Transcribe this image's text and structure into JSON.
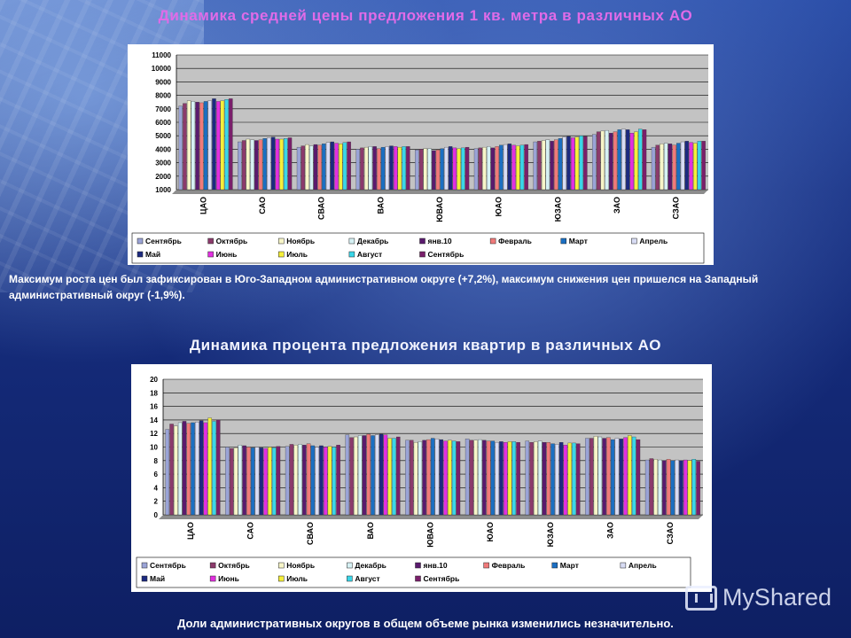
{
  "slide": {
    "note": "Максимум роста цен был зафиксирован в Юго-Западном административном округе (+7,2%), максимум снижения цен пришелся на Западный административный округ (-1,9%).",
    "footer": "Доли административных округов в общем объеме рынка изменились незначительно.",
    "logo_text": "MyShared"
  },
  "chart_data": [
    {
      "type": "bar",
      "title": "Динамика средней цены предложения 1 кв. метра в различных АО",
      "categories": [
        "ЦАО",
        "САО",
        "СВАО",
        "ВАО",
        "ЮВАО",
        "ЮАО",
        "ЮЗАО",
        "ЗАО",
        "СЗАО"
      ],
      "ylim": [
        1000,
        11000
      ],
      "yticks": [
        1000,
        2000,
        3000,
        4000,
        5000,
        6000,
        7000,
        8000,
        9000,
        10000,
        11000
      ],
      "grid": true,
      "legend_position": "bottom",
      "series": [
        {
          "name": "Сентябрь",
          "color": "#9aa3d6",
          "values": [
            7200,
            4550,
            4150,
            4000,
            3950,
            4050,
            4550,
            5100,
            4150
          ]
        },
        {
          "name": "Октябрь",
          "color": "#8b3a6b",
          "values": [
            7400,
            4650,
            4250,
            4100,
            4000,
            4100,
            4600,
            5300,
            4300
          ]
        },
        {
          "name": "Ноябрь",
          "color": "#f7f5c8",
          "values": [
            7600,
            4750,
            4350,
            4150,
            4050,
            4150,
            4650,
            5350,
            4400
          ]
        },
        {
          "name": "Декабрь",
          "color": "#d6f1f4",
          "values": [
            7550,
            4700,
            4250,
            4200,
            4050,
            4200,
            4700,
            5400,
            4450
          ]
        },
        {
          "name": "янв.10",
          "color": "#5a1a6e",
          "values": [
            7500,
            4650,
            4350,
            4200,
            3900,
            4100,
            4600,
            5200,
            4400
          ]
        },
        {
          "name": "Февраль",
          "color": "#f07a7a",
          "values": [
            7450,
            4700,
            4300,
            4050,
            3950,
            4200,
            4700,
            5300,
            4300
          ]
        },
        {
          "name": "Март",
          "color": "#1b6fc2",
          "values": [
            7550,
            4800,
            4400,
            4150,
            4050,
            4300,
            4800,
            5450,
            4450
          ]
        },
        {
          "name": "Апрель",
          "color": "#d8dcf4",
          "values": [
            7600,
            4850,
            4500,
            4200,
            4150,
            4350,
            4900,
            5500,
            4550
          ]
        },
        {
          "name": "Май",
          "color": "#1c2a80",
          "values": [
            7750,
            4900,
            4550,
            4250,
            4200,
            4400,
            4950,
            5450,
            4600
          ]
        },
        {
          "name": "Июнь",
          "color": "#e22fe0",
          "values": [
            7550,
            4750,
            4450,
            4200,
            4100,
            4300,
            4850,
            5200,
            4500
          ]
        },
        {
          "name": "Июль",
          "color": "#f5ef3a",
          "values": [
            7600,
            4750,
            4400,
            4150,
            4050,
            4250,
            4900,
            5300,
            4450
          ]
        },
        {
          "name": "Август",
          "color": "#3ad6e8",
          "values": [
            7700,
            4800,
            4500,
            4200,
            4100,
            4300,
            5000,
            5500,
            4600
          ]
        },
        {
          "name": "Сентябрь",
          "color": "#7a1f6b",
          "values": [
            7750,
            4850,
            4550,
            4200,
            4150,
            4350,
            4950,
            5450,
            4600
          ]
        }
      ]
    },
    {
      "type": "bar",
      "title": "Динамика процента предложения квартир в различных АО",
      "categories": [
        "ЦАО",
        "САО",
        "СВАО",
        "ВАО",
        "ЮВАО",
        "ЮАО",
        "ЮЗАО",
        "ЗАО",
        "СЗАО"
      ],
      "ylim": [
        0,
        20
      ],
      "yticks": [
        0,
        2,
        4,
        6,
        8,
        10,
        12,
        14,
        16,
        18,
        20
      ],
      "grid": true,
      "legend_position": "bottom",
      "series": [
        {
          "name": "Сентябрь",
          "color": "#9aa3d6",
          "values": [
            12.6,
            10.0,
            10.1,
            11.8,
            11.0,
            11.2,
            10.9,
            11.3,
            8.1
          ]
        },
        {
          "name": "Октябрь",
          "color": "#8b3a6b",
          "values": [
            13.4,
            9.8,
            10.4,
            11.4,
            11.0,
            11.0,
            10.7,
            11.3,
            8.3
          ]
        },
        {
          "name": "Ноябрь",
          "color": "#f7f5c8",
          "values": [
            13.1,
            9.9,
            10.3,
            11.5,
            10.7,
            11.0,
            10.8,
            11.6,
            8.2
          ]
        },
        {
          "name": "Декабрь",
          "color": "#d6f1f4",
          "values": [
            13.6,
            10.3,
            10.4,
            11.7,
            10.8,
            11.1,
            10.9,
            11.5,
            8.1
          ]
        },
        {
          "name": "янв.10",
          "color": "#5a1a6e",
          "values": [
            13.8,
            10.2,
            10.3,
            11.7,
            11.0,
            11.0,
            10.7,
            11.3,
            8.0
          ]
        },
        {
          "name": "Февраль",
          "color": "#f07a7a",
          "values": [
            13.5,
            10.0,
            10.5,
            11.9,
            11.1,
            10.9,
            10.7,
            11.4,
            8.2
          ]
        },
        {
          "name": "Март",
          "color": "#1b6fc2",
          "values": [
            13.6,
            9.9,
            10.2,
            11.7,
            11.3,
            10.9,
            10.5,
            11.1,
            8.0
          ]
        },
        {
          "name": "Апрель",
          "color": "#d8dcf4",
          "values": [
            13.7,
            10.0,
            10.0,
            11.8,
            11.2,
            10.7,
            10.4,
            11.3,
            8.1
          ]
        },
        {
          "name": "Май",
          "color": "#1c2a80",
          "values": [
            13.9,
            9.9,
            10.2,
            11.9,
            11.1,
            10.8,
            10.7,
            11.2,
            8.0
          ]
        },
        {
          "name": "Июнь",
          "color": "#e22fe0",
          "values": [
            13.6,
            9.8,
            10.0,
            11.8,
            10.9,
            10.7,
            10.3,
            11.4,
            8.1
          ]
        },
        {
          "name": "Июль",
          "color": "#f5ef3a",
          "values": [
            14.3,
            10.0,
            10.1,
            11.3,
            11.0,
            10.8,
            10.6,
            11.7,
            8.0
          ]
        },
        {
          "name": "Август",
          "color": "#3ad6e8",
          "values": [
            13.8,
            9.9,
            10.0,
            11.3,
            10.9,
            10.8,
            10.6,
            11.5,
            8.2
          ]
        },
        {
          "name": "Сентябрь",
          "color": "#7a1f6b",
          "values": [
            14.0,
            10.1,
            10.3,
            11.5,
            10.8,
            10.7,
            10.5,
            11.1,
            7.9
          ]
        }
      ]
    }
  ]
}
